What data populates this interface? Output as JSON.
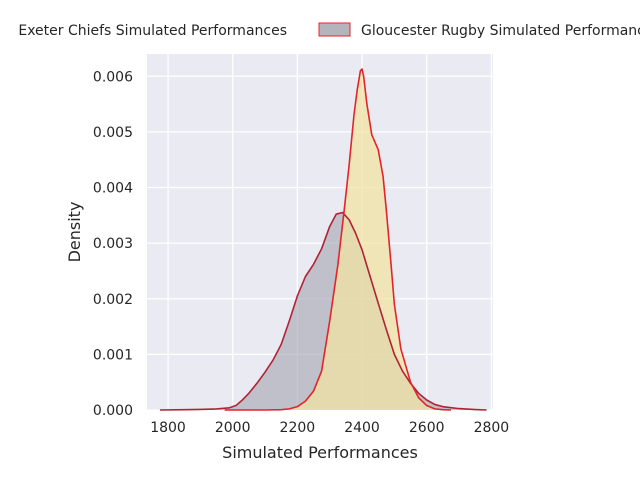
{
  "chart_data": {
    "type": "area",
    "kind": "kde",
    "title": "",
    "xlabel": "Simulated Performances",
    "ylabel": "Density",
    "xlim": [
      1735,
      2805
    ],
    "ylim": [
      0,
      0.0064
    ],
    "xticks": [
      1800,
      2000,
      2200,
      2400,
      2600,
      2800
    ],
    "xtick_labels": [
      "1800",
      "2000",
      "2200",
      "2400",
      "2600",
      "2800"
    ],
    "yticks": [
      0,
      0.001,
      0.002,
      0.003,
      0.004,
      0.005,
      0.006
    ],
    "ytick_labels": [
      "0.000",
      "0.001",
      "0.002",
      "0.003",
      "0.004",
      "0.005",
      "0.006"
    ],
    "grid": true,
    "legend_position": "top-center",
    "series": [
      {
        "name": "Exeter Chiefs Simulated Performances",
        "fill_color": "#a9a9b4",
        "line_color": "#b22234",
        "x": [
          1775,
          1850,
          1900,
          1950,
          1990,
          2010,
          2030,
          2050,
          2075,
          2100,
          2125,
          2150,
          2175,
          2200,
          2225,
          2250,
          2275,
          2300,
          2320,
          2340,
          2360,
          2380,
          2400,
          2425,
          2450,
          2475,
          2500,
          2525,
          2550,
          2575,
          2600,
          2625,
          2650,
          2700,
          2750,
          2785
        ],
        "y": [
          0,
          5e-06,
          1e-05,
          2e-05,
          4e-05,
          8e-05,
          0.00018,
          0.0003,
          0.00048,
          0.00068,
          0.0009,
          0.00118,
          0.0016,
          0.00205,
          0.0024,
          0.00262,
          0.0029,
          0.0033,
          0.00352,
          0.00355,
          0.00342,
          0.00318,
          0.00288,
          0.0024,
          0.00192,
          0.00145,
          0.001,
          0.0007,
          0.00048,
          0.0003,
          0.00018,
          0.0001,
          6e-05,
          2.5e-05,
          8e-06,
          0
        ]
      },
      {
        "name": "Gloucester Rugby Simulated Performances",
        "fill_color": "#f0e3a3",
        "line_color": "#e3242b",
        "x": [
          1975,
          2100,
          2150,
          2175,
          2200,
          2225,
          2250,
          2275,
          2300,
          2325,
          2345,
          2360,
          2375,
          2385,
          2395,
          2400,
          2405,
          2415,
          2430,
          2450,
          2465,
          2475,
          2490,
          2500,
          2520,
          2550,
          2575,
          2600,
          2625,
          2650,
          2675
        ],
        "y": [
          0,
          0,
          5e-06,
          2e-05,
          6e-05,
          0.00016,
          0.00034,
          0.0007,
          0.0016,
          0.0026,
          0.0036,
          0.0044,
          0.0053,
          0.00575,
          0.0061,
          0.00613,
          0.006,
          0.0055,
          0.00495,
          0.00468,
          0.0042,
          0.0036,
          0.0026,
          0.0019,
          0.0011,
          0.0005,
          0.00022,
          8e-05,
          2e-05,
          5e-06,
          0
        ]
      }
    ]
  }
}
